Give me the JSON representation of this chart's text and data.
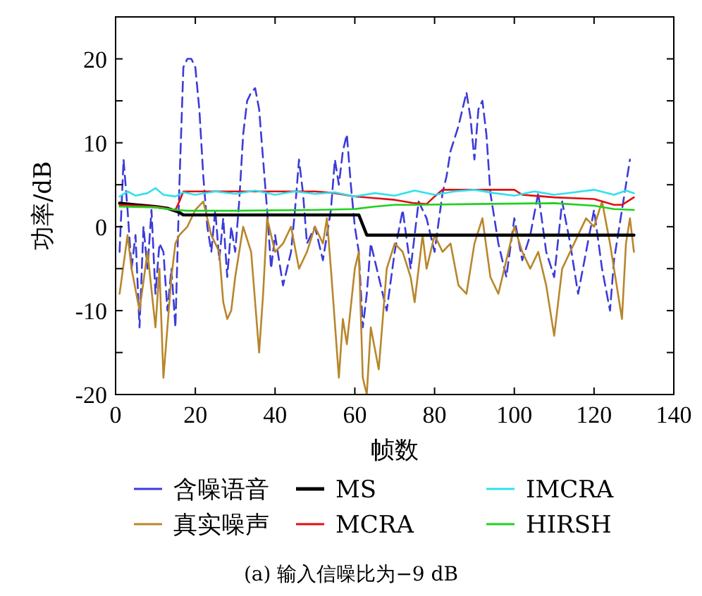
{
  "chart_data": {
    "type": "line",
    "xlabel": "帧数",
    "ylabel": "功率/dB",
    "annotations": [
      "(a) 输入信噪比为−9 dB"
    ],
    "xlim": [
      0,
      140
    ],
    "ylim": [
      -20,
      25
    ],
    "xticks": [
      0,
      20,
      40,
      60,
      80,
      100,
      120,
      140
    ],
    "yticks": [
      -20,
      {
        "value": -15,
        "label": null
      },
      -10,
      {
        "value": -5,
        "label": null
      },
      0,
      {
        "value": 5,
        "label": null
      },
      10,
      {
        "value": 15,
        "label": null
      },
      20
    ],
    "grid": false,
    "legend": "bottom",
    "marker": "none",
    "series": [
      {
        "name": "含噪语音",
        "color": "#3b3bd9",
        "line_style": "dashed",
        "x": [
          1,
          2,
          3,
          4,
          5,
          6,
          7,
          8,
          9,
          10,
          11,
          12,
          13,
          14,
          15,
          16,
          17,
          18,
          19,
          20,
          21,
          22,
          23,
          24,
          25,
          26,
          27,
          28,
          29,
          30,
          31,
          32,
          33,
          34,
          35,
          36,
          37,
          38,
          39,
          40,
          42,
          44,
          45,
          46,
          47,
          48,
          50,
          52,
          54,
          55,
          56,
          57,
          58,
          59,
          60,
          61,
          62,
          63,
          64,
          66,
          68,
          70,
          72,
          74,
          76,
          78,
          80,
          82,
          83,
          84,
          86,
          87,
          88,
          89,
          90,
          91,
          92,
          93,
          94,
          96,
          98,
          100,
          102,
          104,
          106,
          108,
          110,
          112,
          114,
          116,
          118,
          120,
          122,
          124,
          125,
          127,
          128,
          129
        ],
        "values": [
          -3,
          8,
          2,
          -5,
          -1,
          -12,
          0,
          -5,
          2,
          -8,
          -2,
          -3,
          -10,
          -5,
          -12,
          5,
          19,
          20,
          20,
          19,
          14,
          6,
          0,
          -3,
          2,
          -4,
          1,
          -6,
          0,
          -3,
          3,
          11,
          15,
          16,
          16.5,
          14,
          8,
          2,
          -5,
          -1,
          -7,
          -3,
          2,
          8,
          4,
          -2,
          0,
          -4,
          2,
          8,
          5,
          9,
          11,
          5,
          0,
          -3,
          -12,
          -8,
          -2,
          -6,
          -10,
          -3,
          2,
          -5,
          3,
          1,
          -3,
          4,
          6,
          9,
          12,
          14,
          16,
          13,
          8,
          14,
          15,
          11,
          4,
          -2,
          -6,
          1,
          -4,
          -1,
          4,
          -3,
          -6,
          3,
          -2,
          -8,
          -3,
          2,
          -5,
          -10,
          -4,
          2,
          5,
          8
        ]
      },
      {
        "name": "真实噪声",
        "color": "#b8862b",
        "line_style": "solid",
        "x": [
          1,
          3,
          4,
          6,
          8,
          10,
          11,
          12,
          14,
          15,
          16,
          18,
          20,
          22,
          24,
          26,
          27,
          28,
          29,
          30,
          32,
          34,
          36,
          37,
          38,
          40,
          42,
          44,
          46,
          48,
          50,
          52,
          53,
          54,
          56,
          57,
          58,
          60,
          61,
          62,
          63,
          64,
          66,
          68,
          70,
          72,
          74,
          75,
          77,
          78,
          80,
          82,
          84,
          86,
          88,
          90,
          92,
          94,
          96,
          98,
          100,
          102,
          104,
          106,
          108,
          110,
          112,
          114,
          116,
          118,
          120,
          122,
          124,
          126,
          127,
          128,
          129,
          130
        ],
        "values": [
          -8,
          -1,
          -5,
          -10,
          -3,
          -12,
          -5,
          -18,
          -6,
          -2,
          -1,
          0,
          2,
          3,
          -1,
          -3,
          -9,
          -11,
          -10,
          -6,
          0,
          -3,
          -15,
          -8,
          1,
          -3,
          -2,
          0,
          -5,
          -3,
          0,
          -2,
          1,
          -5,
          -18,
          -11,
          -14,
          -5,
          -3,
          -18,
          -20,
          -12,
          -17,
          -5,
          -2,
          -3,
          -6,
          -9,
          -1,
          -5,
          -1,
          -3,
          -2,
          -7,
          -8,
          -2,
          1,
          -6,
          -8,
          -4,
          0,
          -3,
          -5,
          -3,
          -7,
          -13,
          -5,
          -3,
          -1,
          1,
          0,
          3,
          -2,
          -8,
          -11,
          -2,
          1,
          -3
        ]
      },
      {
        "name": "MS",
        "color": "#000000",
        "line_style": "solid",
        "x": [
          1,
          5,
          10,
          13,
          16,
          17,
          61,
          62,
          63,
          130
        ],
        "values": [
          2.8,
          2.6,
          2.4,
          2.2,
          1.7,
          1.4,
          1.4,
          0.2,
          -1,
          -1
        ]
      },
      {
        "name": "MCRA",
        "color": "#e01010",
        "line_style": "solid",
        "x": [
          1,
          10,
          15,
          16,
          17,
          30,
          50,
          55,
          60,
          65,
          70,
          75,
          78,
          80,
          82,
          100,
          102,
          110,
          120,
          125,
          127,
          130
        ],
        "values": [
          2.6,
          2.4,
          2,
          3,
          4.2,
          4.2,
          4.2,
          4,
          3.6,
          3.4,
          3.2,
          2.8,
          2.7,
          3.6,
          4.4,
          4.4,
          3.8,
          3.5,
          3.3,
          2.6,
          2.6,
          3.5
        ]
      },
      {
        "name": "IMCRA",
        "color": "#30e0f0",
        "line_style": "solid",
        "x": [
          1,
          3,
          5,
          8,
          10,
          12,
          15,
          17,
          20,
          25,
          30,
          35,
          40,
          45,
          50,
          55,
          60,
          65,
          70,
          75,
          80,
          85,
          90,
          95,
          100,
          105,
          110,
          115,
          120,
          125,
          128,
          130
        ],
        "values": [
          3.6,
          4.2,
          3.7,
          4,
          4.6,
          3.8,
          3.6,
          4.1,
          3.8,
          4.2,
          3.9,
          4.3,
          3.8,
          4.2,
          3.9,
          4.1,
          3.6,
          4,
          3.7,
          4.3,
          3.8,
          4.2,
          4.4,
          4,
          3.7,
          4.2,
          3.8,
          4.1,
          4.4,
          3.8,
          4.3,
          4
        ]
      },
      {
        "name": "HIRSH",
        "color": "#20d020",
        "line_style": "solid",
        "x": [
          1,
          10,
          15,
          18,
          30,
          50,
          60,
          65,
          70,
          75,
          90,
          110,
          120,
          125,
          130
        ],
        "values": [
          2.4,
          2.3,
          2,
          1.9,
          1.9,
          2,
          2.1,
          2.4,
          2.6,
          2.6,
          2.7,
          2.8,
          2.5,
          2.1,
          2
        ]
      }
    ]
  }
}
